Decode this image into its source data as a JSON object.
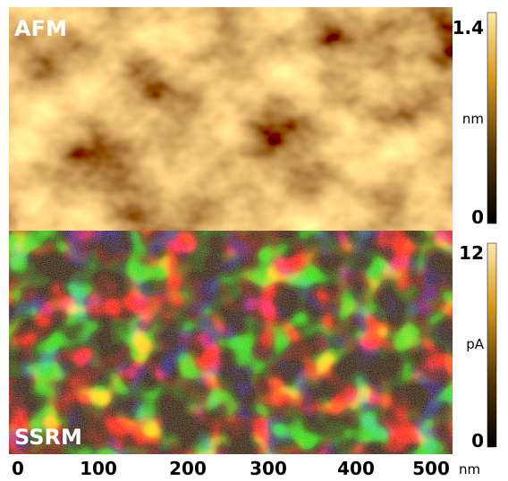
{
  "panels": [
    {
      "label": "AFM",
      "colorbar": {
        "max": "1.4",
        "min": "0",
        "unit": "nm"
      }
    },
    {
      "label": "SSRM",
      "colorbar": {
        "max": "12",
        "min": "0",
        "unit": "pA"
      }
    }
  ],
  "x_axis": {
    "ticks": [
      "0",
      "100",
      "200",
      "300",
      "400",
      "500"
    ],
    "unit": "nm"
  }
}
